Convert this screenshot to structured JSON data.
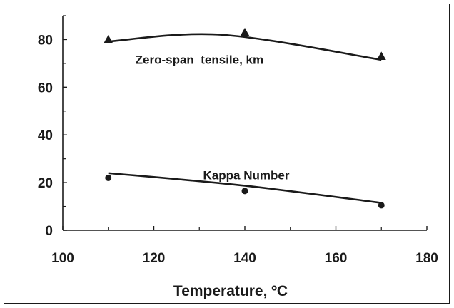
{
  "chart_data": {
    "type": "scatter",
    "title": "",
    "xlabel": "Temperature, ºC",
    "ylabel": "",
    "xlim": [
      100,
      180
    ],
    "ylim": [
      0,
      90
    ],
    "x_ticks": [
      100,
      120,
      140,
      160,
      180
    ],
    "y_ticks": [
      0,
      20,
      40,
      60,
      80
    ],
    "x_tick_labels": [
      "100",
      "120",
      "140",
      "160",
      "180"
    ],
    "y_tick_labels": [
      "0",
      "20",
      "40",
      "60",
      "80"
    ],
    "grid": false,
    "legend": "none",
    "series": [
      {
        "name": "Zero-span  tensile, km",
        "marker": "triangle",
        "x": [
          110,
          140,
          170
        ],
        "y": [
          80,
          83,
          73
        ],
        "trend": "smooth curve"
      },
      {
        "name": "Kappa Number",
        "marker": "circle",
        "x": [
          110,
          140,
          170
        ],
        "y": [
          22,
          16.5,
          10.5
        ],
        "trend": "smooth curve"
      }
    ],
    "colors": {
      "ink": "#1a1a1a"
    }
  }
}
